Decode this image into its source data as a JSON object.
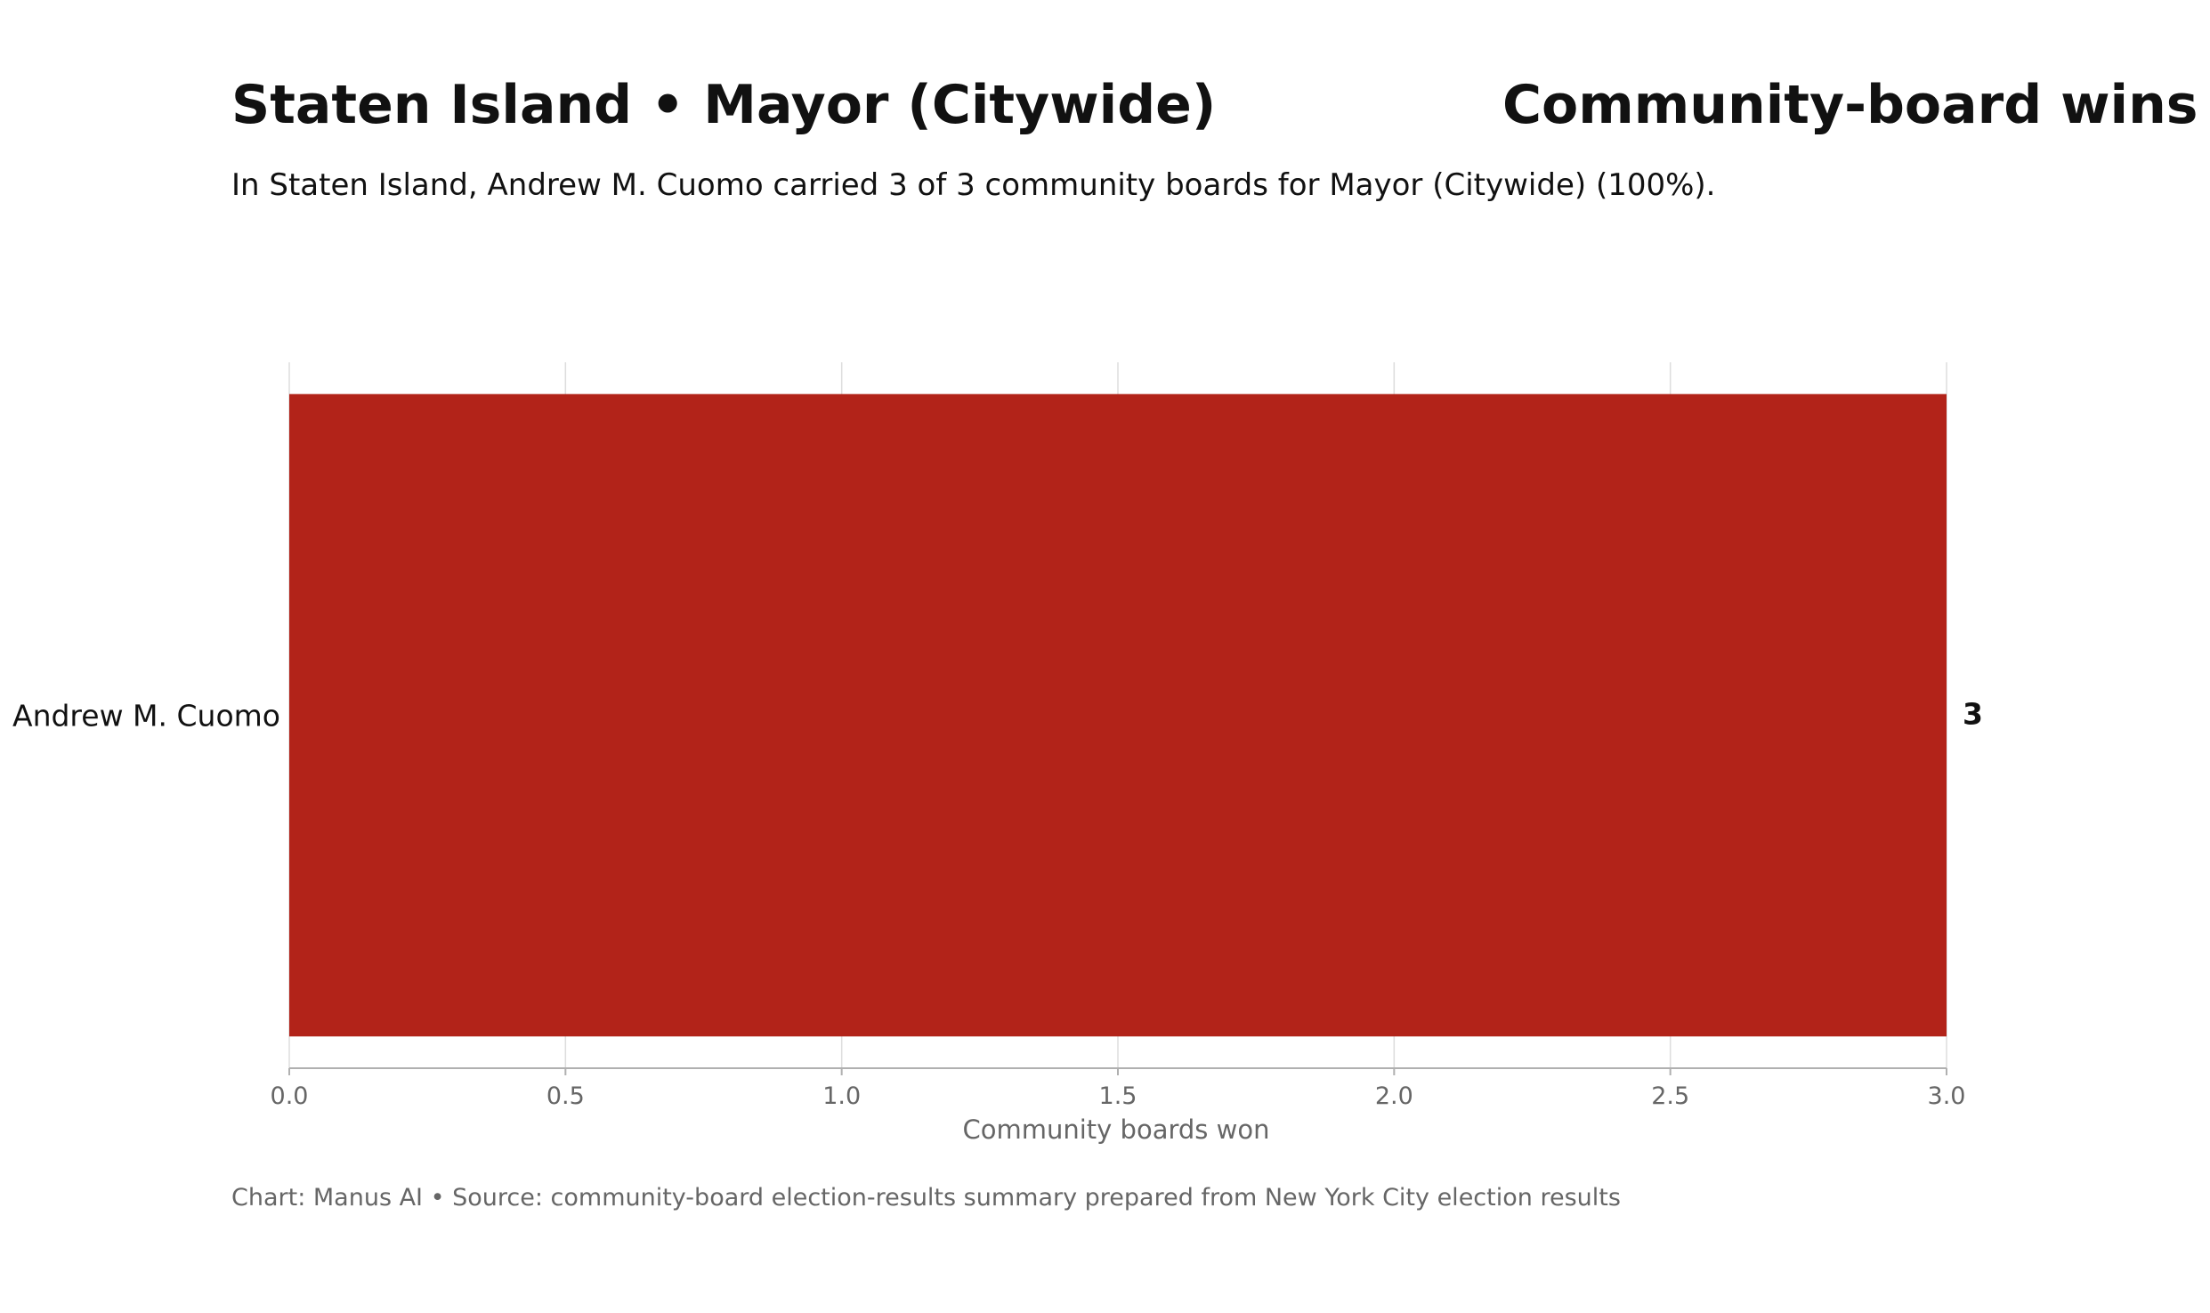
{
  "header": {
    "title": "Staten Island • Mayor (Citywide)",
    "title_right": "Community-board wins",
    "subtitle": "In Staten Island, Andrew M. Cuomo carried 3 of 3 community boards for Mayor (Citywide) (100%)."
  },
  "footer": {
    "credit": "Chart: Manus AI • Source: community-board election-results summary prepared from New York City election results"
  },
  "chart_data": {
    "type": "bar",
    "orientation": "horizontal",
    "categories": [
      "Andrew M. Cuomo"
    ],
    "values": [
      3
    ],
    "value_labels": [
      "3"
    ],
    "xlabel": "Community boards won",
    "ylabel": "",
    "xlim": [
      0,
      3
    ],
    "x_ticks": [
      0,
      0.5,
      1,
      1.5,
      2,
      2.5,
      3
    ],
    "x_tick_labels": [
      "0.0",
      "0.5",
      "1.0",
      "1.5",
      "2.0",
      "2.5",
      "3.0"
    ],
    "grid": "vertical",
    "bar_color": "#b22319"
  }
}
